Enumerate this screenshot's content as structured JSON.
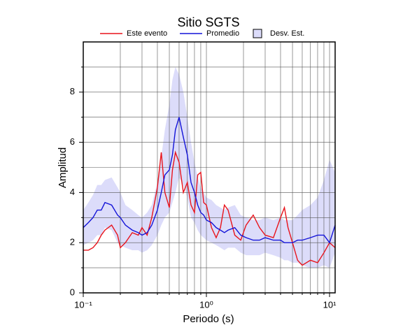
{
  "chart_data": {
    "type": "line",
    "title": "Sitio SGTS",
    "x_label": "Periodo (s)",
    "y_label": "Amplitud",
    "x": [
      0.1,
      0.11,
      0.12,
      0.13,
      0.14,
      0.15,
      0.17,
      0.19,
      0.2,
      0.22,
      0.25,
      0.28,
      0.3,
      0.33,
      0.36,
      0.4,
      0.43,
      0.46,
      0.5,
      0.53,
      0.56,
      0.6,
      0.65,
      0.7,
      0.75,
      0.8,
      0.85,
      0.9,
      0.95,
      1.0,
      1.1,
      1.2,
      1.3,
      1.4,
      1.5,
      1.7,
      1.9,
      2.1,
      2.4,
      2.7,
      3,
      3.5,
      4,
      4.3,
      4.6,
      5,
      5.5,
      6,
      7,
      8,
      9,
      10,
      11.1
    ],
    "series": [
      {
        "name": "Este evento",
        "color": "#e8141c",
        "values": [
          1.7,
          1.7,
          1.8,
          2.0,
          2.3,
          2.5,
          2.7,
          2.3,
          1.8,
          2.0,
          2.4,
          2.3,
          2.6,
          2.3,
          3.0,
          4.2,
          5.6,
          4.0,
          3.4,
          4.9,
          5.6,
          5.2,
          4.0,
          4.4,
          3.5,
          3.2,
          4.7,
          4.8,
          3.6,
          3.5,
          2.6,
          2.2,
          2.6,
          3.5,
          3.3,
          2.3,
          2.1,
          2.7,
          3.1,
          2.6,
          2.3,
          2.2,
          3.0,
          3.4,
          2.6,
          2.0,
          1.3,
          1.1,
          1.3,
          1.2,
          1.6,
          2.0,
          1.8
        ]
      },
      {
        "name": "Promedio",
        "color": "#1414d8",
        "values": [
          2.6,
          2.8,
          3.0,
          3.3,
          3.3,
          3.6,
          3.5,
          3.1,
          3.0,
          2.7,
          2.5,
          2.4,
          2.3,
          2.4,
          2.7,
          3.3,
          4.0,
          4.7,
          4.9,
          5.5,
          6.5,
          7.0,
          6.2,
          5.5,
          4.4,
          4.0,
          3.5,
          3.2,
          3.1,
          2.9,
          2.8,
          2.6,
          2.5,
          2.4,
          2.5,
          2.6,
          2.3,
          2.2,
          2.1,
          2.1,
          2.2,
          2.1,
          2.1,
          2.0,
          2.0,
          2.0,
          2.1,
          2.1,
          2.2,
          2.3,
          2.3,
          2.0,
          2.7
        ]
      }
    ],
    "band": {
      "name": "Desv. Est.",
      "color": "#dcdcfa",
      "upper": [
        3.3,
        3.6,
        3.9,
        4.3,
        4.3,
        4.5,
        4.6,
        4.2,
        4.0,
        3.5,
        3.3,
        3.1,
        3.0,
        3.2,
        3.5,
        4.4,
        5.4,
        6.5,
        7.5,
        8.5,
        9.0,
        8.7,
        8.0,
        7.0,
        6.0,
        5.2,
        4.6,
        4.2,
        4.0,
        3.8,
        3.7,
        3.5,
        3.4,
        3.3,
        3.4,
        3.5,
        3.1,
        3.0,
        2.9,
        2.9,
        3.0,
        2.9,
        3.0,
        2.9,
        2.9,
        2.9,
        3.1,
        3.3,
        3.5,
        3.8,
        4.5,
        5.3,
        4.8
      ],
      "lower": [
        1.9,
        2.0,
        2.1,
        2.3,
        2.3,
        2.6,
        2.5,
        2.0,
        1.9,
        1.8,
        1.7,
        1.7,
        1.6,
        1.7,
        1.9,
        2.3,
        2.7,
        3.0,
        3.2,
        3.6,
        4.0,
        4.6,
        4.3,
        3.8,
        3.0,
        2.8,
        2.5,
        2.3,
        2.2,
        2.1,
        2.0,
        1.9,
        1.8,
        1.7,
        1.8,
        1.8,
        1.6,
        1.5,
        1.5,
        1.5,
        1.6,
        1.5,
        1.4,
        1.3,
        1.3,
        1.2,
        1.2,
        1.1,
        1.0,
        1.0,
        1.1,
        1.0,
        1.6
      ]
    },
    "xlim": [
      0.1,
      11.1
    ],
    "ylim": [
      0,
      10
    ],
    "log_x": true,
    "grid": true,
    "xticks": [
      {
        "value": 0.1,
        "label": "10⁻¹"
      },
      {
        "value": 1,
        "label": "10⁰"
      },
      {
        "value": 10,
        "label": "10¹"
      }
    ],
    "x_minor_ticks": [
      0.2,
      0.3,
      0.4,
      0.5,
      0.6,
      0.7,
      0.8,
      0.9,
      2,
      3,
      4,
      5,
      6,
      7,
      8,
      9
    ],
    "yticks": [
      0,
      2,
      4,
      6,
      8
    ],
    "y_minor_ticks": [
      1,
      3,
      5,
      7,
      9
    ]
  }
}
